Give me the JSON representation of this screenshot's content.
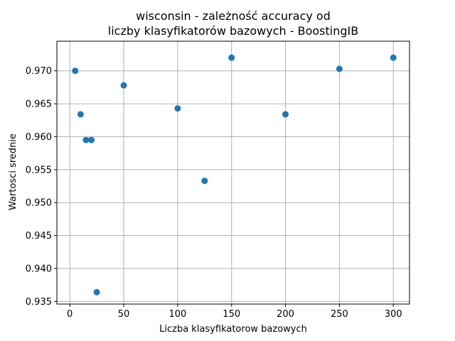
{
  "chart_data": {
    "type": "scatter",
    "title_lines": [
      "wisconsin - zależność accuracy od",
      "liczby klasyfikatorów bazowych - BoostingIB"
    ],
    "xlabel": "Liczba klasyfikatorow bazowych",
    "ylabel": "Wartosci srednie",
    "xlim": [
      -12,
      315
    ],
    "ylim": [
      0.9346,
      0.9745
    ],
    "xticks": [
      0,
      50,
      100,
      150,
      200,
      250,
      300
    ],
    "xtick_labels": [
      "0",
      "50",
      "100",
      "150",
      "200",
      "250",
      "300"
    ],
    "yticks": [
      0.935,
      0.94,
      0.945,
      0.95,
      0.955,
      0.96,
      0.965,
      0.97
    ],
    "ytick_labels": [
      "0.935",
      "0.940",
      "0.945",
      "0.950",
      "0.955",
      "0.960",
      "0.965",
      "0.970"
    ],
    "grid": true,
    "marker_color": "#1f77b4",
    "points": [
      {
        "x": 5,
        "y": 0.97
      },
      {
        "x": 10,
        "y": 0.9634
      },
      {
        "x": 15,
        "y": 0.9595
      },
      {
        "x": 20,
        "y": 0.9595
      },
      {
        "x": 25,
        "y": 0.9364
      },
      {
        "x": 50,
        "y": 0.9678
      },
      {
        "x": 100,
        "y": 0.9643
      },
      {
        "x": 125,
        "y": 0.9533
      },
      {
        "x": 150,
        "y": 0.972
      },
      {
        "x": 200,
        "y": 0.9634
      },
      {
        "x": 250,
        "y": 0.9703
      },
      {
        "x": 300,
        "y": 0.972
      }
    ]
  }
}
